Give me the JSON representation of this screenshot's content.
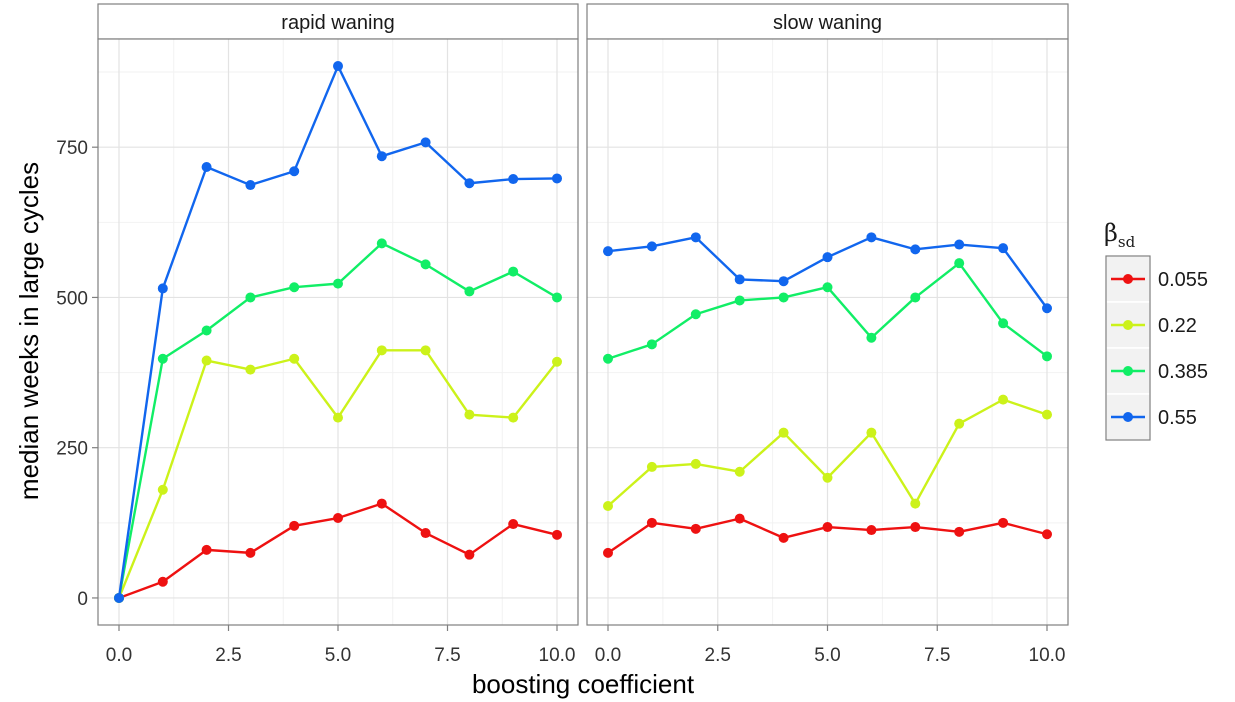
{
  "chart_data": {
    "type": "line",
    "xlabel": "boosting coefficient",
    "ylabel": "median weeks in large cycles",
    "xlim": [
      0,
      10
    ],
    "ylim": [
      -45,
      930
    ],
    "x_ticks": [
      "0.0",
      "2.5",
      "5.0",
      "7.5",
      "10.0"
    ],
    "x_tick_values": [
      0,
      2.5,
      5,
      7.5,
      10
    ],
    "y_ticks": [
      "0",
      "250",
      "500",
      "750"
    ],
    "y_tick_values": [
      0,
      250,
      500,
      750
    ],
    "grid": true,
    "legend": {
      "title_main": "β",
      "title_sub": "sd",
      "placement": "right"
    },
    "x": [
      0,
      1,
      2,
      3,
      4,
      5,
      6,
      7,
      8,
      9,
      10
    ],
    "panels": [
      {
        "title": "rapid waning",
        "series": [
          {
            "name": "0.055",
            "color": "#ee1111",
            "values": [
              0,
              27,
              80,
              75,
              120,
              133,
              157,
              108,
              72,
              123,
              105
            ]
          },
          {
            "name": "0.22",
            "color": "#ccf21a",
            "values": [
              0,
              180,
              395,
              380,
              398,
              300,
              412,
              412,
              305,
              300,
              393
            ]
          },
          {
            "name": "0.385",
            "color": "#11ee66",
            "values": [
              0,
              398,
              445,
              500,
              517,
              523,
              590,
              555,
              510,
              543,
              500
            ]
          },
          {
            "name": "0.55",
            "color": "#1166ee",
            "values": [
              0,
              515,
              717,
              687,
              710,
              885,
              735,
              758,
              690,
              697,
              698
            ]
          }
        ]
      },
      {
        "title": "slow waning",
        "series": [
          {
            "name": "0.055",
            "color": "#ee1111",
            "values": [
              75,
              125,
              115,
              132,
              100,
              118,
              113,
              118,
              110,
              125,
              106
            ]
          },
          {
            "name": "0.22",
            "color": "#ccf21a",
            "values": [
              153,
              218,
              223,
              210,
              275,
              200,
              275,
              157,
              290,
              330,
              305
            ]
          },
          {
            "name": "0.385",
            "color": "#11ee66",
            "values": [
              398,
              422,
              472,
              495,
              500,
              517,
              433,
              500,
              557,
              457,
              402
            ]
          },
          {
            "name": "0.55",
            "color": "#1166ee",
            "values": [
              577,
              585,
              600,
              530,
              527,
              567,
              600,
              580,
              588,
              582,
              482
            ]
          }
        ]
      }
    ]
  }
}
